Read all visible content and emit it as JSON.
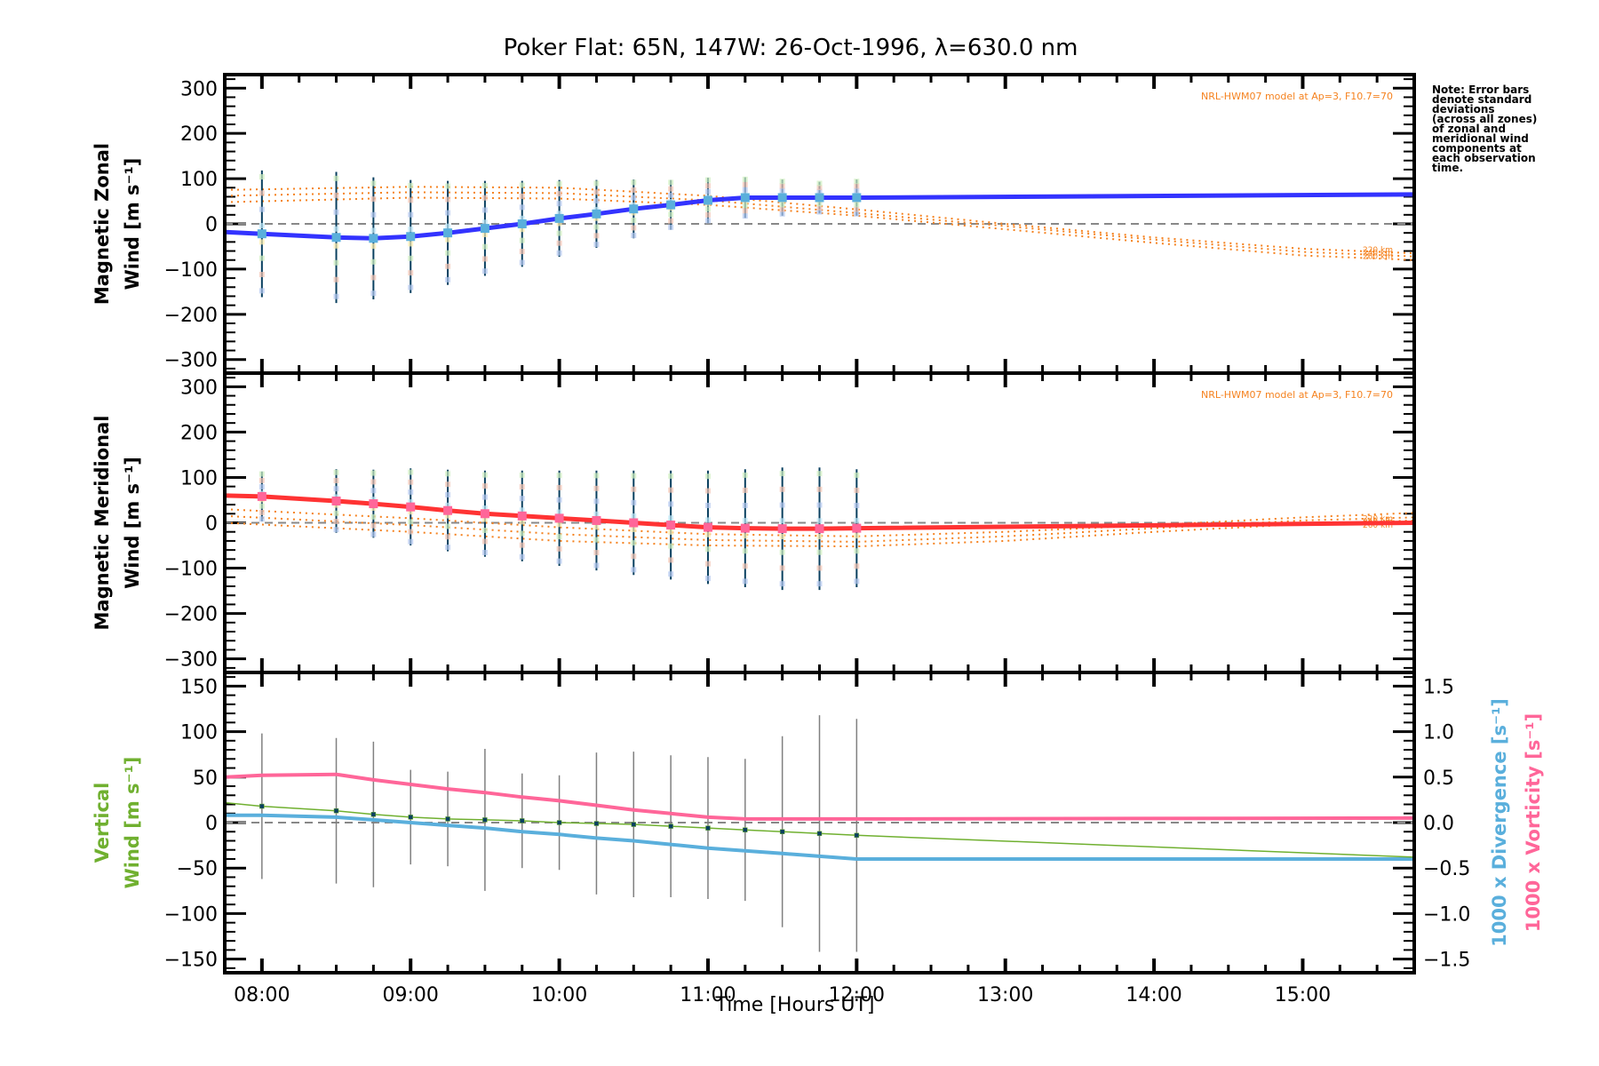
{
  "chart_data": {
    "type": "line",
    "title": "Poker Flat: 65N, 147W: 26-Oct-1996, λ=630.0 nm",
    "xlabel": "Time [Hours UT]",
    "xlim": [
      7.75,
      15.75
    ],
    "xticks": [
      8,
      9,
      10,
      11,
      12,
      13,
      14,
      15
    ],
    "xtick_labels": [
      "08:00",
      "09:00",
      "10:00",
      "11:00",
      "12:00",
      "13:00",
      "14:00",
      "15:00"
    ],
    "note": [
      "Note: Error bars",
      "denote standard",
      "deviations",
      "(across all zones)",
      "of zonal and",
      "meridional wind",
      "components at",
      "each observation",
      "time."
    ],
    "panels": [
      {
        "id": "zonal",
        "ylabel": [
          "Magnetic Zonal",
          "Wind [m s⁻¹]"
        ],
        "ylim": [
          -330,
          330
        ],
        "yticks": [
          -300,
          -200,
          -100,
          0,
          100,
          200,
          300
        ],
        "model_label": "NRL-HWM07 model at Ap=3, F10.7=70",
        "alt_labels": [
          "220 km",
          "240 km",
          "260 km"
        ],
        "series": {
          "name": "Magnetic Zonal Wind",
          "color": "#3333ff",
          "x": [
            7.75,
            8.0,
            8.5,
            8.75,
            9.0,
            9.25,
            9.5,
            9.75,
            10.0,
            10.25,
            10.5,
            10.75,
            11.0,
            11.25,
            11.5,
            11.75,
            12.0,
            15.75
          ],
          "y": [
            -18,
            -22,
            -30,
            -32,
            -28,
            -20,
            -10,
            0,
            12,
            22,
            33,
            42,
            52,
            58,
            58,
            58,
            58,
            65
          ]
        },
        "observations": {
          "x": [
            8.0,
            8.5,
            8.75,
            9.0,
            9.25,
            9.5,
            9.75,
            10.0,
            10.25,
            10.5,
            10.75,
            11.0,
            11.25,
            11.5,
            11.75,
            12.0
          ],
          "y": [
            -22,
            -30,
            -32,
            -28,
            -20,
            -10,
            0,
            12,
            22,
            33,
            42,
            52,
            58,
            58,
            58,
            58
          ],
          "err": [
            140,
            145,
            135,
            125,
            115,
            105,
            95,
            85,
            75,
            65,
            55,
            50,
            45,
            40,
            35,
            40
          ]
        },
        "model_curves": [
          {
            "alt": "220 km",
            "x": [
              7.75,
              9,
              10,
              11,
              12,
              13,
              14,
              15,
              15.75
            ],
            "y": [
              75,
              82,
              80,
              62,
              32,
              0,
              -30,
              -55,
              -65
            ]
          },
          {
            "alt": "240 km",
            "x": [
              7.75,
              9,
              10,
              11,
              12,
              13,
              14,
              15,
              15.75
            ],
            "y": [
              62,
              70,
              68,
              52,
              24,
              -5,
              -35,
              -62,
              -72
            ]
          },
          {
            "alt": "260 km",
            "x": [
              7.75,
              9,
              10,
              11,
              12,
              13,
              14,
              15,
              15.75
            ],
            "y": [
              48,
              58,
              56,
              42,
              18,
              -12,
              -42,
              -70,
              -80
            ]
          }
        ]
      },
      {
        "id": "meridional",
        "ylabel": [
          "Magnetic Meridional",
          "Wind [m s⁻¹]"
        ],
        "ylim": [
          -330,
          330
        ],
        "yticks": [
          -300,
          -200,
          -100,
          0,
          100,
          200,
          300
        ],
        "model_label": "NRL-HWM07 model at Ap=3, F10.7=70",
        "alt_labels": [
          "220 km",
          "240 km",
          "260 km"
        ],
        "series": {
          "name": "Magnetic Meridional Wind",
          "color": "#ff3333",
          "x": [
            7.75,
            8.0,
            8.5,
            8.75,
            9.0,
            9.25,
            9.5,
            9.75,
            10.0,
            10.25,
            10.5,
            10.75,
            11.0,
            11.25,
            11.5,
            11.75,
            12.0,
            15.75
          ],
          "y": [
            60,
            58,
            48,
            42,
            35,
            27,
            20,
            15,
            10,
            5,
            0,
            -5,
            -10,
            -12,
            -13,
            -13,
            -12,
            0
          ]
        },
        "observations": {
          "x": [
            8.0,
            8.5,
            8.75,
            9.0,
            9.25,
            9.5,
            9.75,
            10.0,
            10.25,
            10.5,
            10.75,
            11.0,
            11.25,
            11.5,
            11.75,
            12.0
          ],
          "y": [
            58,
            48,
            42,
            35,
            27,
            20,
            15,
            10,
            5,
            0,
            -5,
            -10,
            -12,
            -13,
            -13,
            -12
          ],
          "err": [
            55,
            70,
            75,
            85,
            90,
            95,
            100,
            105,
            110,
            115,
            120,
            125,
            130,
            135,
            135,
            130
          ]
        },
        "model_curves": [
          {
            "alt": "220 km",
            "x": [
              7.75,
              9,
              10,
              11,
              12,
              13,
              14,
              15,
              15.75
            ],
            "y": [
              30,
              10,
              -10,
              -25,
              -30,
              -20,
              -5,
              12,
              22
            ]
          },
          {
            "alt": "240 km",
            "x": [
              7.75,
              9,
              10,
              11,
              12,
              13,
              14,
              15,
              15.75
            ],
            "y": [
              15,
              -5,
              -25,
              -38,
              -42,
              -30,
              -12,
              5,
              12
            ]
          },
          {
            "alt": "260 km",
            "x": [
              7.75,
              9,
              10,
              11,
              12,
              13,
              14,
              15,
              15.75
            ],
            "y": [
              0,
              -20,
              -40,
              -50,
              -52,
              -40,
              -20,
              -3,
              5
            ]
          }
        ]
      },
      {
        "id": "vertical",
        "ylabel": [
          "Vertical",
          "Wind [m s⁻¹]"
        ],
        "ylabel_color": "#70b030",
        "ylim": [
          -165,
          165
        ],
        "yticks": [
          -150,
          -100,
          -50,
          0,
          50,
          100,
          150
        ],
        "y2label_div": "1000 x Divergence [s⁻¹]",
        "y2label_div_color": "#5aafdc",
        "y2label_vort": "1000 x Vorticity [s⁻¹]",
        "y2label_vort_color": "#ff6699",
        "y2lim": [
          -1.65,
          1.65
        ],
        "y2ticks": [
          -1.5,
          -1.0,
          -0.5,
          0.0,
          0.5,
          1.0,
          1.5
        ],
        "y2tick_labels": [
          "−1.5",
          "−1.0",
          "−0.5",
          "0.0",
          "0.5",
          "1.0",
          "1.5"
        ],
        "vertical_wind": {
          "name": "Vertical Wind",
          "color": "#70b030",
          "x": [
            7.75,
            8.0,
            8.5,
            8.75,
            9.0,
            9.25,
            9.5,
            9.75,
            10.0,
            10.25,
            10.5,
            10.75,
            11.0,
            11.25,
            11.5,
            11.75,
            12.0,
            15.75
          ],
          "y": [
            22,
            18,
            13,
            9,
            6,
            4,
            3,
            2,
            0,
            -1,
            -2,
            -4,
            -6,
            -8,
            -10,
            -12,
            -14,
            -38
          ]
        },
        "vertical_obs": {
          "x": [
            8.0,
            8.5,
            8.75,
            9.0,
            9.25,
            9.5,
            9.75,
            10.0,
            10.25,
            10.5,
            10.75,
            11.0,
            11.25,
            11.5,
            11.75,
            12.0
          ],
          "y": [
            18,
            13,
            9,
            6,
            4,
            3,
            2,
            0,
            -1,
            -2,
            -4,
            -6,
            -8,
            -10,
            -12,
            -14
          ],
          "err": [
            80,
            80,
            80,
            52,
            52,
            78,
            52,
            52,
            78,
            80,
            78,
            78,
            78,
            105,
            130,
            128
          ]
        },
        "divergence": {
          "name": "1000 x Divergence",
          "color": "#5aafdc",
          "x": [
            7.75,
            8.0,
            8.5,
            8.75,
            9.0,
            9.25,
            9.5,
            9.75,
            10.0,
            10.25,
            10.5,
            10.75,
            11.0,
            11.25,
            11.5,
            11.75,
            12.0,
            15.75
          ],
          "y": [
            0.08,
            0.08,
            0.06,
            0.03,
            0.0,
            -0.03,
            -0.06,
            -0.1,
            -0.13,
            -0.17,
            -0.2,
            -0.24,
            -0.28,
            -0.31,
            -0.34,
            -0.37,
            -0.4,
            -0.4
          ]
        },
        "vorticity": {
          "name": "1000 x Vorticity",
          "color": "#ff6699",
          "x": [
            7.75,
            8.0,
            8.5,
            8.75,
            9.0,
            9.25,
            9.5,
            9.75,
            10.0,
            10.25,
            10.5,
            10.75,
            11.0,
            11.25,
            11.5,
            11.75,
            12.0,
            15.75
          ],
          "y": [
            0.5,
            0.52,
            0.53,
            0.47,
            0.42,
            0.37,
            0.33,
            0.28,
            0.24,
            0.19,
            0.14,
            0.1,
            0.06,
            0.04,
            0.04,
            0.04,
            0.04,
            0.05
          ]
        }
      }
    ]
  }
}
